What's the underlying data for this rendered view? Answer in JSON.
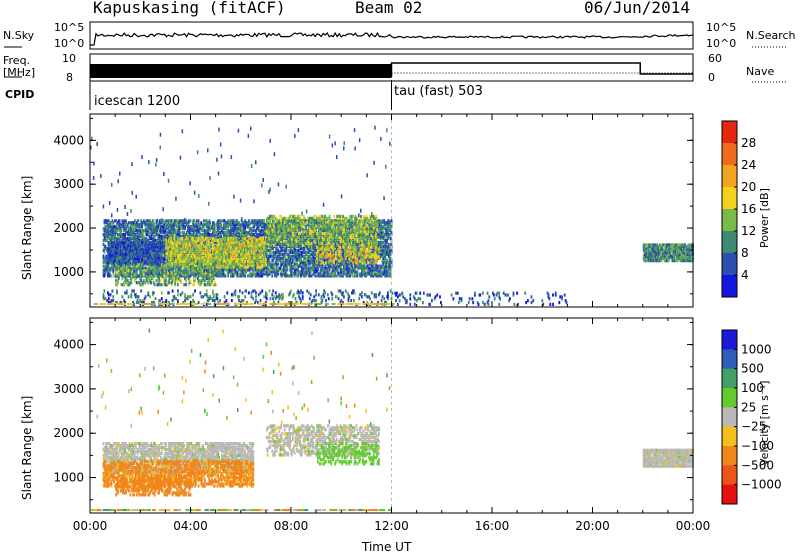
{
  "header": {
    "station": "Kapuskasing (fitACF)",
    "beam": "Beam 02",
    "date": "06/Jun/2014"
  },
  "strips": {
    "nsky_label": "N.Sky",
    "nsky_ticks": [
      "10^5",
      "10^0"
    ],
    "nsearch_label": "N.Search",
    "nsearch_ticks": [
      "10^5",
      "10^0"
    ],
    "freq_label": "Freq.",
    "freq_unit": "[MHz]",
    "freq_ticks": [
      "10",
      "8"
    ],
    "nave_label": "Nave",
    "nave_ticks": [
      "60",
      "0"
    ],
    "cpid_label": "CPID",
    "modes": [
      {
        "name": "icescan 1200",
        "start_hour": 0,
        "end_hour": 12
      },
      {
        "name": "tau (fast) 503",
        "start_hour": 12,
        "end_hour": 24
      }
    ]
  },
  "colors": {
    "power": [
      "#1515e0",
      "#2a4fae",
      "#3d8a70",
      "#78bb48",
      "#f2d21d",
      "#f2a31f",
      "#ef6c1a",
      "#e52712"
    ],
    "velocity": [
      "#1a1ad8",
      "#2e5cb8",
      "#43a066",
      "#62cc2e",
      "#b8b8b8",
      "#f6be1c",
      "#f1861b",
      "#ec5418",
      "#e31010"
    ]
  },
  "chart_data": [
    {
      "type": "heatmap",
      "title": "Power",
      "ylabel": "Slant Range [km]",
      "ylim": [
        200,
        4600
      ],
      "yticks": [
        "4000",
        "3000",
        "2000",
        "1000"
      ],
      "xlim": [
        0,
        24
      ],
      "colorbar_label": "Power [dB]",
      "colorbar_ticks": [
        "28",
        "24",
        "20",
        "16",
        "12",
        "8",
        "4"
      ],
      "colorbar_range": [
        0,
        32
      ],
      "regions": [
        {
          "t0": 0.5,
          "t1": 12,
          "r0": 900,
          "r1": 2200,
          "value": 8,
          "density": 0.55
        },
        {
          "t0": 0.7,
          "t1": 3,
          "r0": 1200,
          "r1": 1700,
          "value": 6,
          "density": 0.6
        },
        {
          "t0": 3,
          "t1": 7,
          "r0": 1100,
          "r1": 1800,
          "value": 16,
          "density": 0.5
        },
        {
          "t0": 1,
          "t1": 5,
          "r0": 700,
          "r1": 1200,
          "value": 12,
          "density": 0.3
        },
        {
          "t0": 7,
          "t1": 11.5,
          "r0": 1600,
          "r1": 2300,
          "value": 14,
          "density": 0.35
        },
        {
          "t0": 9,
          "t1": 11.5,
          "r0": 1200,
          "r1": 1600,
          "value": 18,
          "density": 0.3
        },
        {
          "t0": 0.5,
          "t1": 12,
          "r0": 250,
          "r1": 600,
          "value": 8,
          "density": 0.12
        },
        {
          "t0": 12,
          "t1": 19,
          "r0": 250,
          "r1": 550,
          "value": 6,
          "density": 0.08
        },
        {
          "t0": 22,
          "t1": 24,
          "r0": 1250,
          "r1": 1650,
          "value": 10,
          "density": 0.75
        }
      ]
    },
    {
      "type": "heatmap",
      "title": "Velocity",
      "ylabel": "Slant Range [km]",
      "ylim": [
        200,
        4600
      ],
      "yticks": [
        "4000",
        "3000",
        "2000",
        "1000"
      ],
      "xlim": [
        0,
        24
      ],
      "xticks": [
        "00:00",
        "04:00",
        "08:00",
        "12:00",
        "16:00",
        "20:00",
        "00:00"
      ],
      "xlabel": "Time UT",
      "colorbar_label": "Velocity [m s⁻¹]",
      "colorbar_ticks": [
        "1000",
        "500",
        "100",
        "25",
        "−25",
        "−100",
        "−500",
        "−1000"
      ],
      "regions": [
        {
          "t0": 0.5,
          "t1": 6.5,
          "r0": 1100,
          "r1": 1800,
          "value": 0,
          "density": 0.5
        },
        {
          "t0": 0.5,
          "t1": 6.5,
          "r0": 800,
          "r1": 1400,
          "value": -150,
          "density": 0.45
        },
        {
          "t0": 1,
          "t1": 4,
          "r0": 600,
          "r1": 1000,
          "value": -250,
          "density": 0.35
        },
        {
          "t0": 7,
          "t1": 11.5,
          "r0": 1500,
          "r1": 2200,
          "value": 0,
          "density": 0.35
        },
        {
          "t0": 9,
          "t1": 11.5,
          "r0": 1300,
          "r1": 1800,
          "value": 50,
          "density": 0.25
        },
        {
          "t0": 22,
          "t1": 24,
          "r0": 1250,
          "r1": 1650,
          "value": 0,
          "density": 0.8
        }
      ]
    }
  ]
}
